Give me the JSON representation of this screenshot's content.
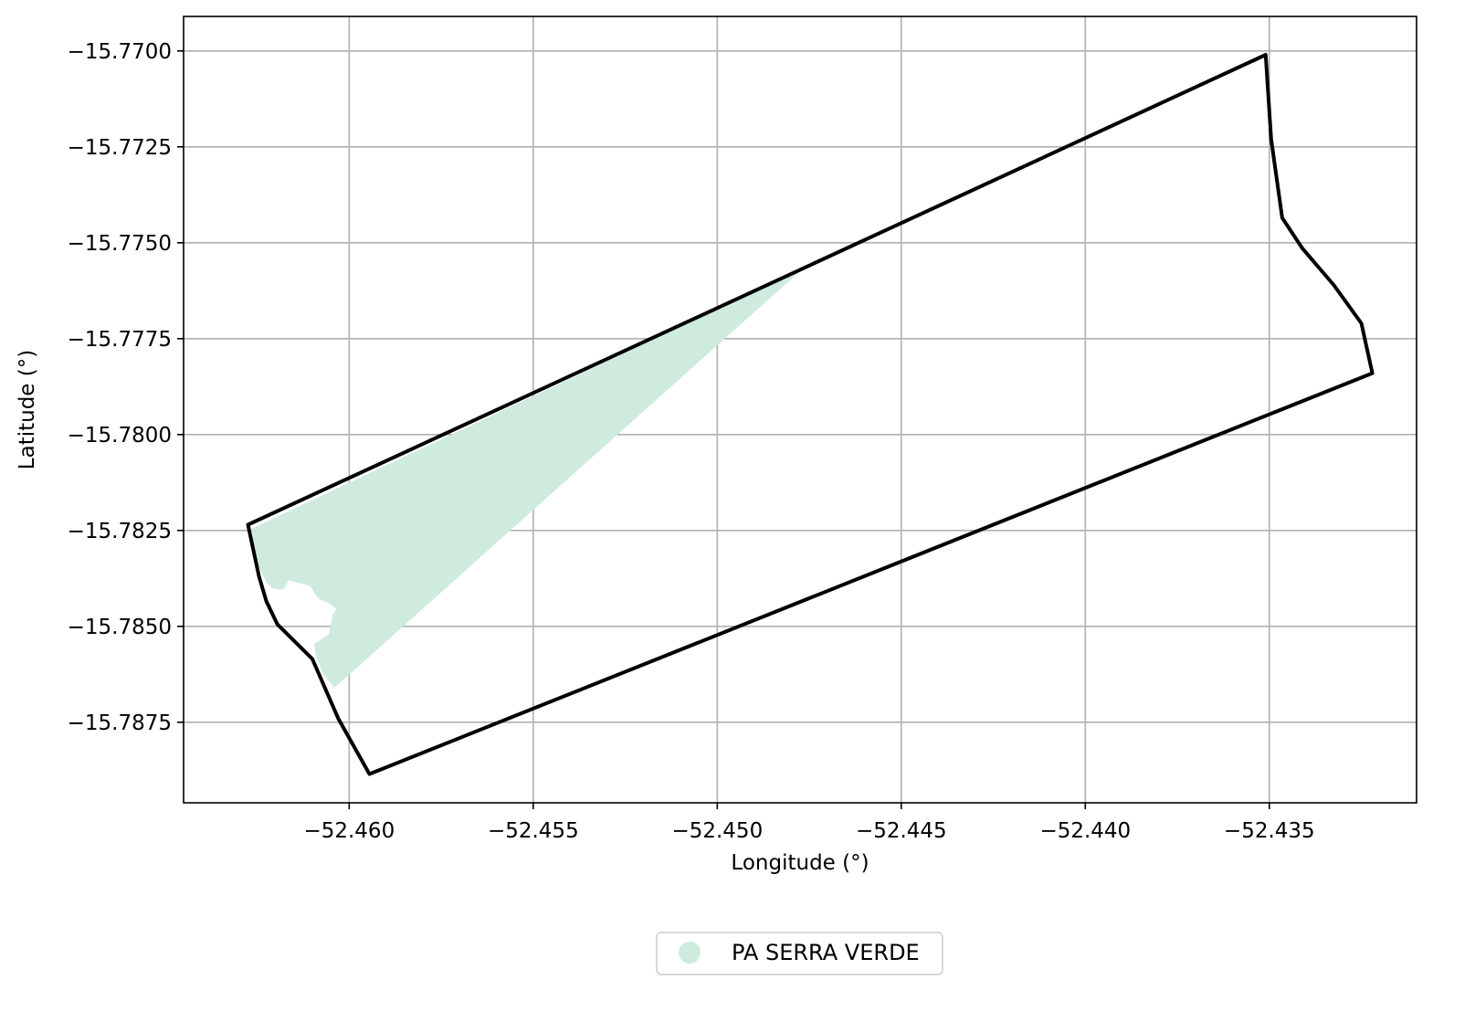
{
  "chart_data": {
    "type": "map",
    "title": "",
    "xlabel": "Longitude (°)",
    "ylabel": "Latitude (°)",
    "xlim": [
      -52.4645,
      -52.431
    ],
    "ylim": [
      -15.7896,
      -15.7691
    ],
    "grid": true,
    "x_ticks": [
      -52.46,
      -52.455,
      -52.45,
      -52.445,
      -52.44,
      -52.435
    ],
    "x_tick_labels": [
      "−52.460",
      "−52.455",
      "−52.450",
      "−52.445",
      "−52.440",
      "−52.435"
    ],
    "y_ticks": [
      -15.77,
      -15.7725,
      -15.775,
      -15.7775,
      -15.78,
      -15.7825,
      -15.785,
      -15.7875
    ],
    "y_tick_labels": [
      "−15.7700",
      "−15.7725",
      "−15.7750",
      "−15.7775",
      "−15.7800",
      "−15.7825",
      "−15.7850",
      "−15.7875"
    ],
    "boundary": {
      "color": "#000000",
      "coordinates": [
        [
          -52.46275,
          -15.78235
        ],
        [
          -52.4351,
          -15.7701
        ],
        [
          -52.43495,
          -15.7723
        ],
        [
          -52.43465,
          -15.77435
        ],
        [
          -52.4341,
          -15.77515
        ],
        [
          -52.43325,
          -15.7761
        ],
        [
          -52.4325,
          -15.7771
        ],
        [
          -52.4322,
          -15.7784
        ],
        [
          -52.45945,
          -15.78885
        ],
        [
          -52.4603,
          -15.7874
        ],
        [
          -52.461,
          -15.78585
        ],
        [
          -52.46195,
          -15.78495
        ],
        [
          -52.46225,
          -15.78435
        ],
        [
          -52.46245,
          -15.7837
        ],
        [
          -52.46275,
          -15.78235
        ]
      ]
    },
    "series": [
      {
        "name": "PA SERRA VERDE",
        "color": "#ceebde",
        "coordinates": [
          [
            -52.46265,
            -15.78245
          ],
          [
            -52.4477,
            -15.7757
          ],
          [
            -52.4604,
            -15.7866
          ],
          [
            -52.4607,
            -15.78625
          ],
          [
            -52.4609,
            -15.7858
          ],
          [
            -52.46095,
            -15.78545
          ],
          [
            -52.46055,
            -15.7852
          ],
          [
            -52.46045,
            -15.7847
          ],
          [
            -52.46035,
            -15.78455
          ],
          [
            -52.46055,
            -15.7844
          ],
          [
            -52.4608,
            -15.7843
          ],
          [
            -52.4609,
            -15.7842
          ],
          [
            -52.46105,
            -15.78395
          ],
          [
            -52.46165,
            -15.7838
          ],
          [
            -52.46175,
            -15.784
          ],
          [
            -52.46185,
            -15.78405
          ],
          [
            -52.4621,
            -15.784
          ],
          [
            -52.46225,
            -15.78385
          ],
          [
            -52.46255,
            -15.78325
          ]
        ]
      }
    ],
    "legend": {
      "placement": "bottom-center",
      "entries": [
        "PA SERRA VERDE"
      ]
    }
  }
}
